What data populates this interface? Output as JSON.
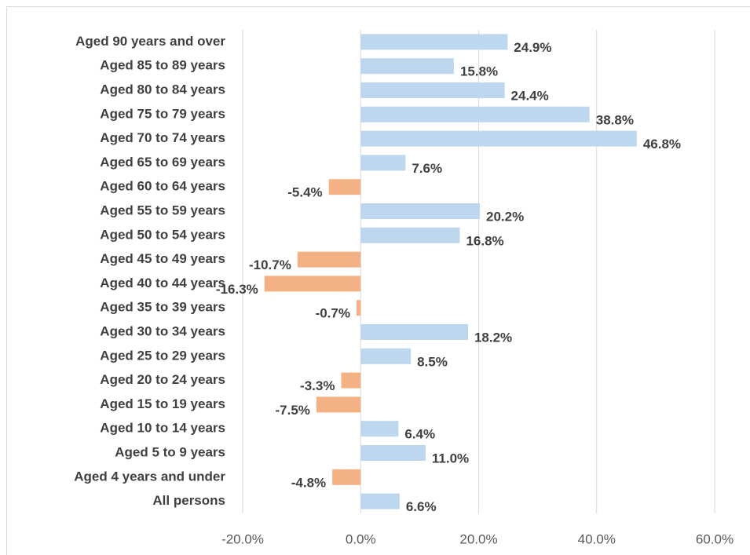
{
  "chart_data": {
    "type": "hbar",
    "categories": [
      "Aged 90 years and over",
      "Aged 85 to 89 years",
      "Aged 80 to 84 years",
      "Aged 75 to 79 years",
      "Aged 70 to 74 years",
      "Aged 65 to 69 years",
      "Aged 60 to 64 years",
      "Aged 55 to 59 years",
      "Aged 50 to 54 years",
      "Aged 45 to 49 years",
      "Aged 40 to 44 years",
      "Aged 35 to 39 years",
      "Aged 30 to 34 years",
      "Aged 25 to 29 years",
      "Aged 20 to 24 years",
      "Aged 15 to 19 years",
      "Aged 10 to 14 years",
      "Aged 5 to 9 years",
      "Aged 4 years and under",
      "All persons"
    ],
    "values": [
      24.9,
      15.8,
      24.4,
      38.8,
      46.8,
      7.6,
      -5.4,
      20.2,
      16.8,
      -10.7,
      -16.3,
      -0.7,
      18.2,
      8.5,
      -3.3,
      -7.5,
      6.4,
      11.0,
      -4.8,
      6.6
    ],
    "value_labels": [
      "24.9%",
      "15.8%",
      "24.4%",
      "38.8%",
      "46.8%",
      "7.6%",
      "-5.4%",
      "20.2%",
      "16.8%",
      "-10.7%",
      "-16.3%",
      "-0.7%",
      "18.2%",
      "8.5%",
      "-3.3%",
      "-7.5%",
      "6.4%",
      "11.0%",
      "-4.8%",
      "6.6%"
    ],
    "color": "#bdd7ee",
    "negative_color": "#f4b183",
    "xlim": [
      -20,
      60
    ],
    "xticks": [
      {
        "value": -20,
        "label": "-20.0%"
      },
      {
        "value": 0,
        "label": "0.0%"
      },
      {
        "value": 20,
        "label": "20.0%"
      },
      {
        "value": 40,
        "label": "40.0%"
      },
      {
        "value": 60,
        "label": "60.0%"
      }
    ],
    "grid": true
  }
}
